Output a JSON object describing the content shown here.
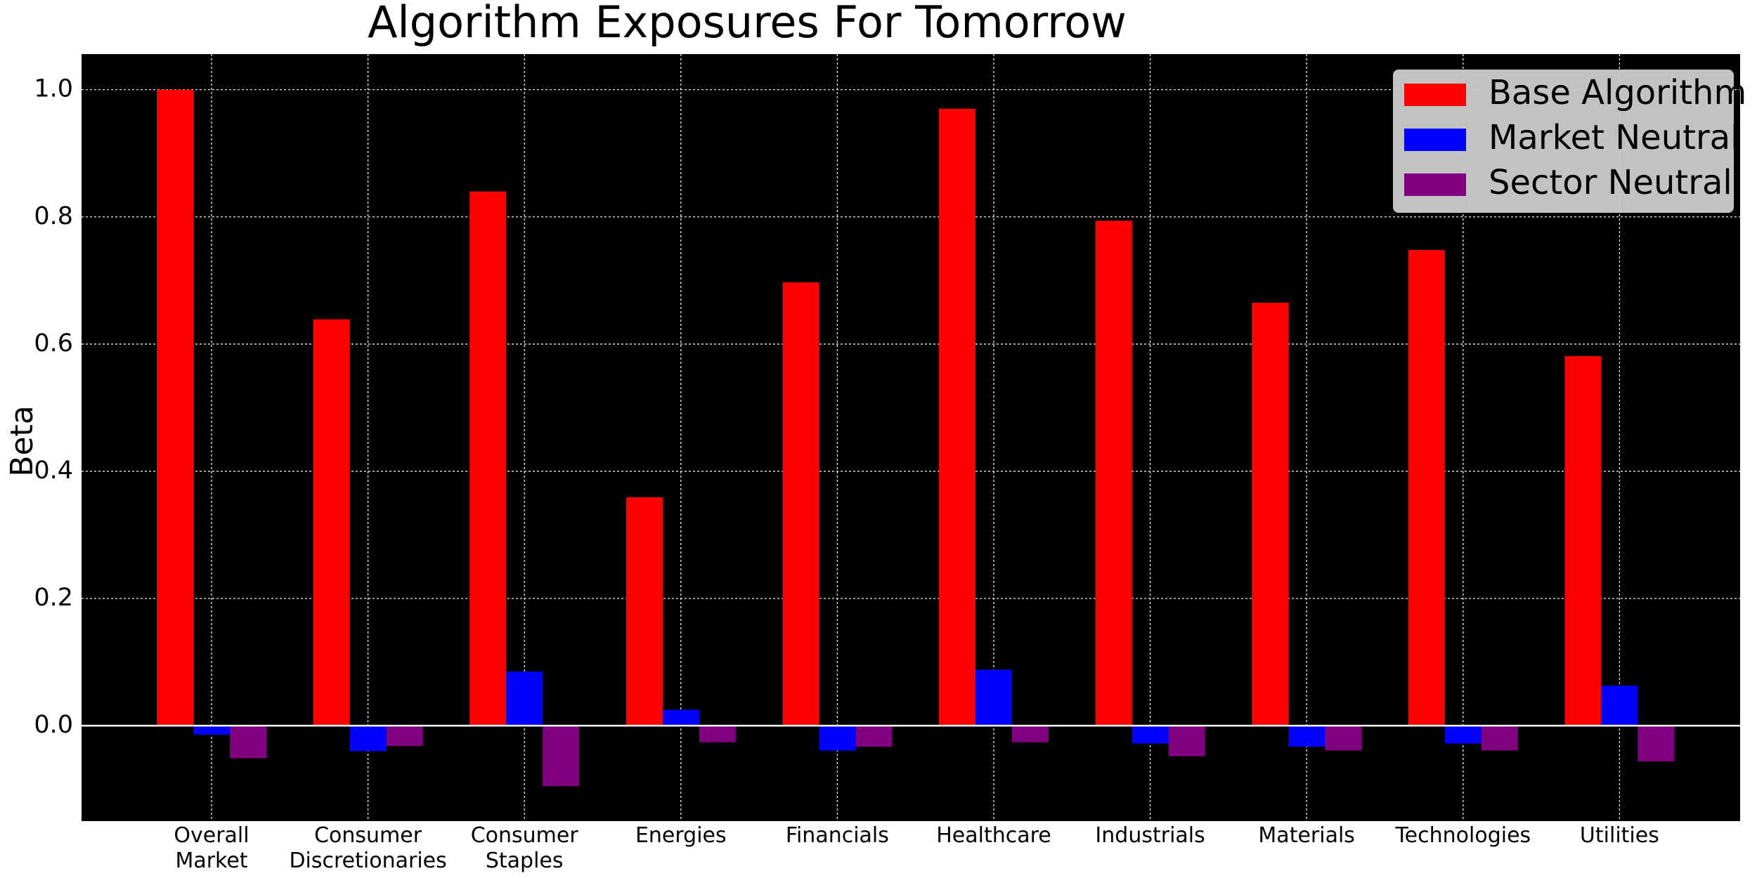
{
  "chart_data": {
    "type": "bar",
    "title": "Algorithm Exposures For Tomorrow",
    "y_label": "Beta",
    "categories": [
      "Overall\nMarket",
      "Consumer\nDiscretionaries",
      "Consumer\nStaples",
      "Energies",
      "Financials",
      "Healthcare",
      "Industrials",
      "Materials",
      "Technologies",
      "Utilities"
    ],
    "series": [
      {
        "name": "Base Algorithm",
        "color": "#ff0000",
        "values": [
          1.0,
          0.639,
          0.84,
          0.359,
          0.697,
          0.97,
          0.794,
          0.665,
          0.748,
          0.581
        ]
      },
      {
        "name": "Market Neutral",
        "color": "#0000ff",
        "values": [
          -0.014,
          -0.04,
          0.085,
          0.025,
          -0.039,
          0.088,
          -0.028,
          -0.033,
          -0.028,
          0.063
        ]
      },
      {
        "name": "Sector Neutral",
        "color": "#800080",
        "values": [
          -0.051,
          -0.032,
          -0.095,
          -0.026,
          -0.033,
          -0.026,
          -0.048,
          -0.039,
          -0.039,
          -0.056
        ]
      }
    ],
    "ylim": [
      -0.15,
      1.056
    ],
    "yticks": [
      {
        "value": 0,
        "label": "0.0"
      },
      {
        "value": 0.2,
        "label": "0.2"
      },
      {
        "value": 0.4,
        "label": "0.4"
      },
      {
        "value": 0.6,
        "label": "0.6"
      },
      {
        "value": 0.8,
        "label": "0.8"
      },
      {
        "value": 1,
        "label": "1.0"
      }
    ],
    "hline": 0,
    "grid": true,
    "legend": "upper right"
  }
}
